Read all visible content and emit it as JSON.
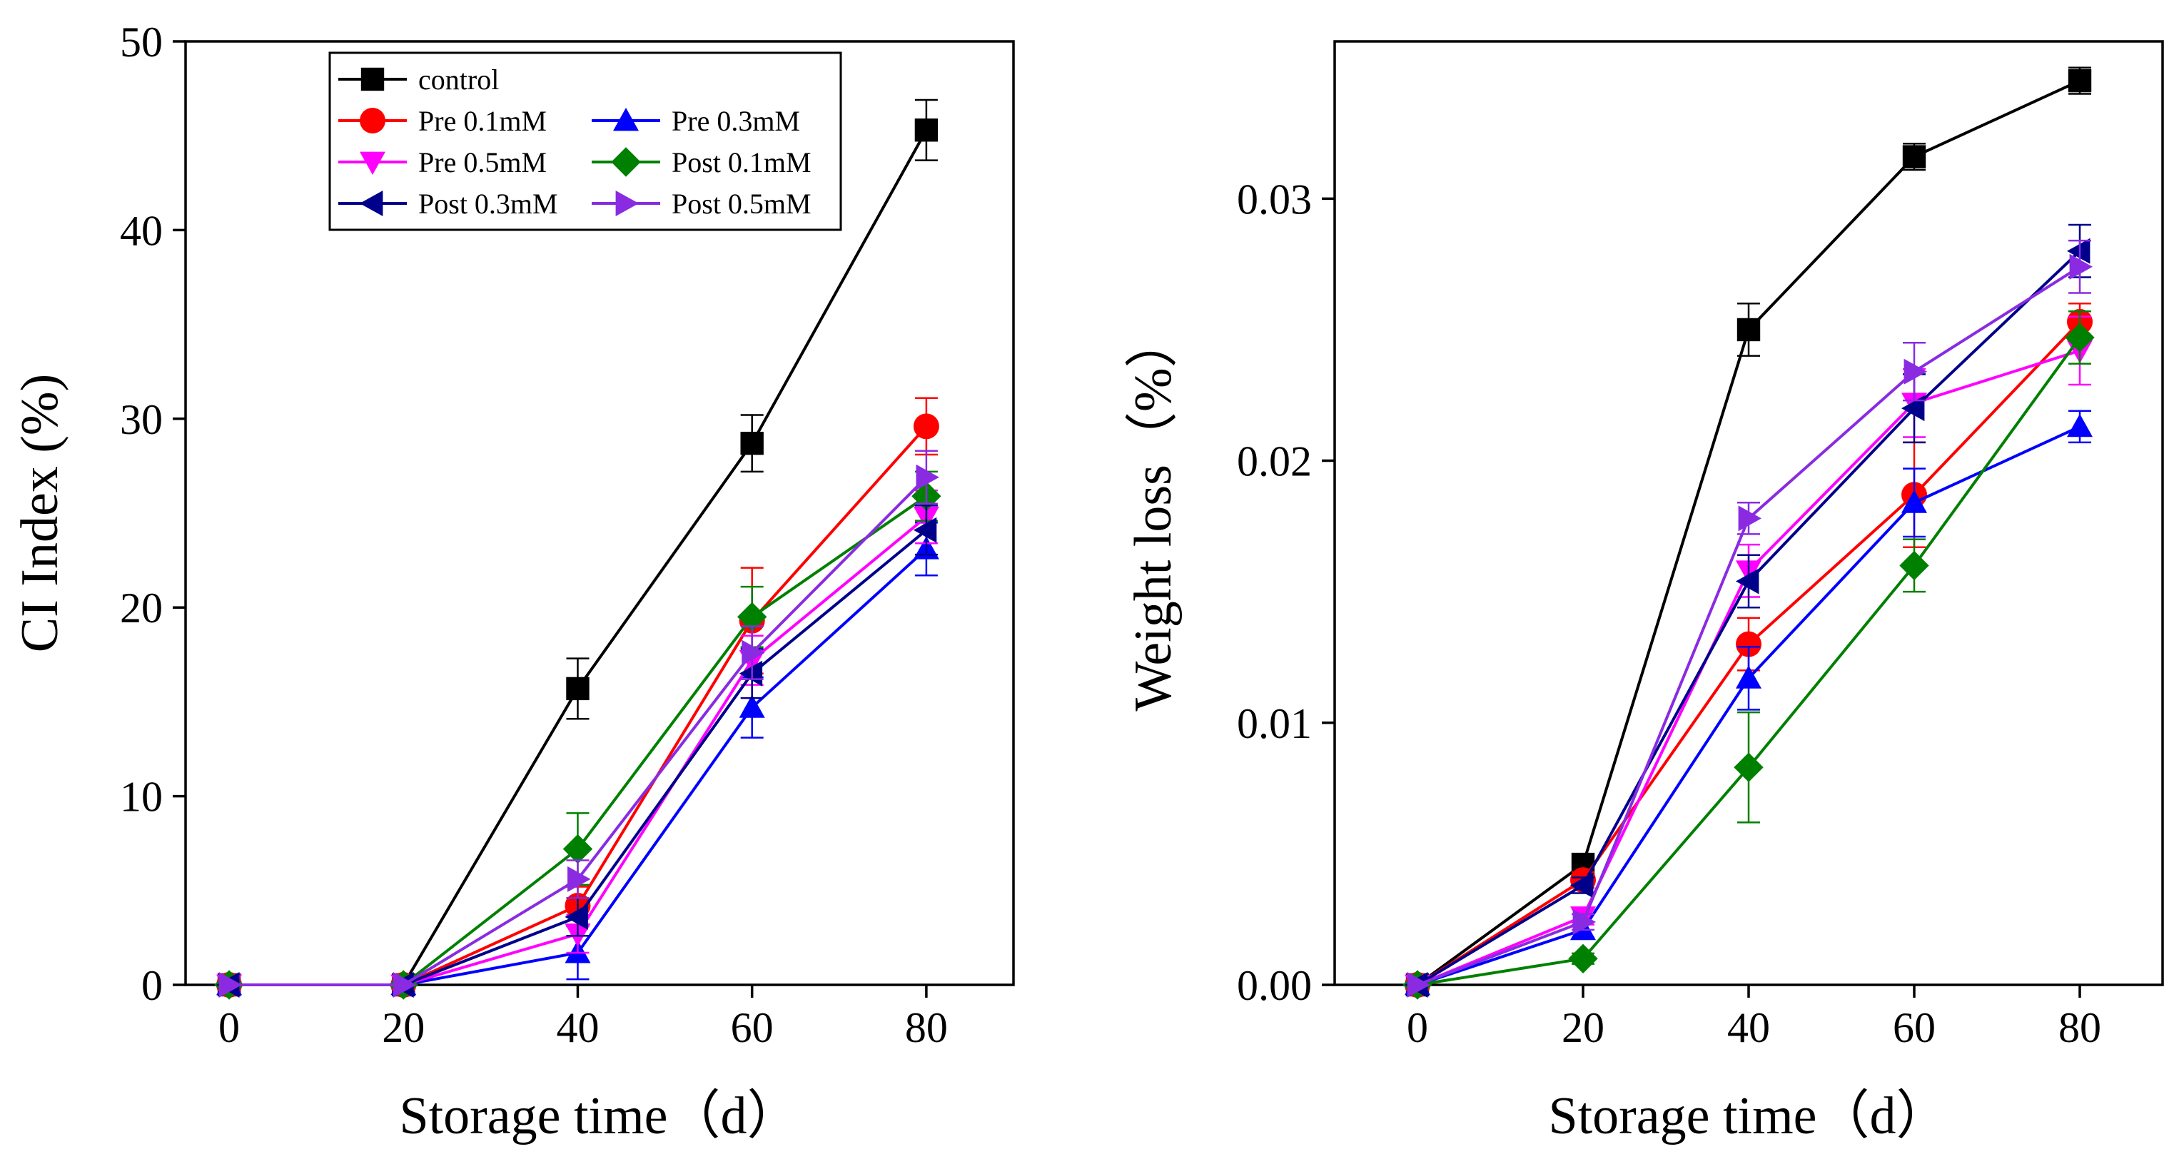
{
  "chart_data": [
    {
      "type": "line",
      "panel": "left",
      "title": "",
      "xlabel": "Storage time（d）",
      "ylabel": "CI Index (%)",
      "x": [
        0,
        20,
        40,
        60,
        80
      ],
      "xlim": [
        -5,
        90
      ],
      "ylim": [
        0,
        50
      ],
      "xticks": [
        0,
        20,
        40,
        60,
        80
      ],
      "yticks": [
        0,
        10,
        20,
        30,
        40,
        50
      ],
      "xtick_labels": [
        "0",
        "20",
        "40",
        "60",
        "80"
      ],
      "ytick_labels": [
        "0",
        "10",
        "20",
        "30",
        "40",
        "50"
      ],
      "legend_position": "top-left",
      "series": [
        {
          "name": "control",
          "color": "#000000",
          "marker": "square",
          "values": [
            0,
            0,
            15.7,
            28.7,
            45.3
          ],
          "errors": [
            0.3,
            0.2,
            1.6,
            1.5,
            1.6
          ]
        },
        {
          "name": "Pre 0.1mM",
          "color": "#ff0000",
          "marker": "circle",
          "values": [
            0,
            0,
            4.2,
            19.3,
            29.6
          ],
          "errors": [
            0,
            0,
            1.0,
            2.8,
            1.5
          ]
        },
        {
          "name": "Pre 0.3mM",
          "color": "#0000ff",
          "marker": "triangle-up",
          "values": [
            0,
            0,
            1.7,
            14.7,
            23.1
          ],
          "errors": [
            0,
            0,
            1.4,
            1.6,
            1.4
          ]
        },
        {
          "name": "Pre 0.5mM",
          "color": "#ff00ff",
          "marker": "triangle-down",
          "values": [
            0,
            0,
            2.7,
            17.2,
            24.8
          ],
          "errors": [
            0,
            0,
            1.0,
            1.3,
            1.4
          ]
        },
        {
          "name": "Post 0.1mM",
          "color": "#008000",
          "marker": "diamond",
          "values": [
            0,
            0,
            7.2,
            19.5,
            25.9
          ],
          "errors": [
            0,
            0,
            1.9,
            1.6,
            1.3
          ]
        },
        {
          "name": "Post 0.3mM",
          "color": "#00008b",
          "marker": "triangle-left",
          "values": [
            0,
            0,
            3.6,
            16.5,
            24.1
          ],
          "errors": [
            0,
            0,
            1.0,
            1.3,
            1.3
          ]
        },
        {
          "name": "Post 0.5mM",
          "color": "#8a2be2",
          "marker": "triangle-right",
          "values": [
            0,
            0,
            5.6,
            17.6,
            26.9
          ],
          "errors": [
            0,
            0,
            1.0,
            1.4,
            1.4
          ]
        }
      ]
    },
    {
      "type": "line",
      "panel": "right",
      "title": "",
      "xlabel": "Storage time（d）",
      "ylabel": "Weight loss（%）",
      "x": [
        0,
        20,
        40,
        60,
        80
      ],
      "xlim": [
        -10,
        90
      ],
      "ylim": [
        0,
        0.036
      ],
      "xticks": [
        0,
        20,
        40,
        60,
        80
      ],
      "yticks": [
        0,
        0.01,
        0.02,
        0.03
      ],
      "xtick_labels": [
        "0",
        "20",
        "40",
        "60",
        "80"
      ],
      "ytick_labels": [
        "0.00",
        "0.01",
        "0.02",
        "0.03"
      ],
      "series": [
        {
          "name": "control",
          "color": "#000000",
          "marker": "square",
          "values": [
            0,
            0.0046,
            0.025,
            0.0316,
            0.0345
          ],
          "errors": [
            0.0002,
            0.0003,
            0.001,
            0.0005,
            0.0005
          ]
        },
        {
          "name": "Pre 0.1mM",
          "color": "#ff0000",
          "marker": "circle",
          "values": [
            0,
            0.004,
            0.013,
            0.0187,
            0.0253
          ],
          "errors": [
            0,
            0.0003,
            0.001,
            0.002,
            0.0007
          ]
        },
        {
          "name": "Pre 0.3mM",
          "color": "#0000ff",
          "marker": "triangle-up",
          "values": [
            0,
            0.0021,
            0.0117,
            0.0184,
            0.0213
          ],
          "errors": [
            0,
            0.0003,
            0.0012,
            0.0013,
            0.0006
          ]
        },
        {
          "name": "Pre 0.5mM",
          "color": "#ff00ff",
          "marker": "triangle-down",
          "values": [
            0,
            0.0026,
            0.0158,
            0.0222,
            0.0242
          ],
          "errors": [
            0,
            0.0003,
            0.001,
            0.0013,
            0.0013
          ]
        },
        {
          "name": "Post 0.1mM",
          "color": "#008000",
          "marker": "diamond",
          "values": [
            0,
            0.001,
            0.0083,
            0.016,
            0.0247
          ],
          "errors": [
            0,
            0.0002,
            0.0021,
            0.001,
            0.001
          ]
        },
        {
          "name": "Post 0.3mM",
          "color": "#00008b",
          "marker": "triangle-left",
          "values": [
            0,
            0.0038,
            0.0154,
            0.022,
            0.028
          ],
          "errors": [
            0,
            0.0003,
            0.001,
            0.0013,
            0.001
          ]
        },
        {
          "name": "Post 0.5mM",
          "color": "#8a2be2",
          "marker": "triangle-right",
          "values": [
            0,
            0.0024,
            0.0178,
            0.0234,
            0.0274
          ],
          "errors": [
            0,
            0.0003,
            0.0006,
            0.0011,
            0.001
          ]
        }
      ]
    }
  ]
}
